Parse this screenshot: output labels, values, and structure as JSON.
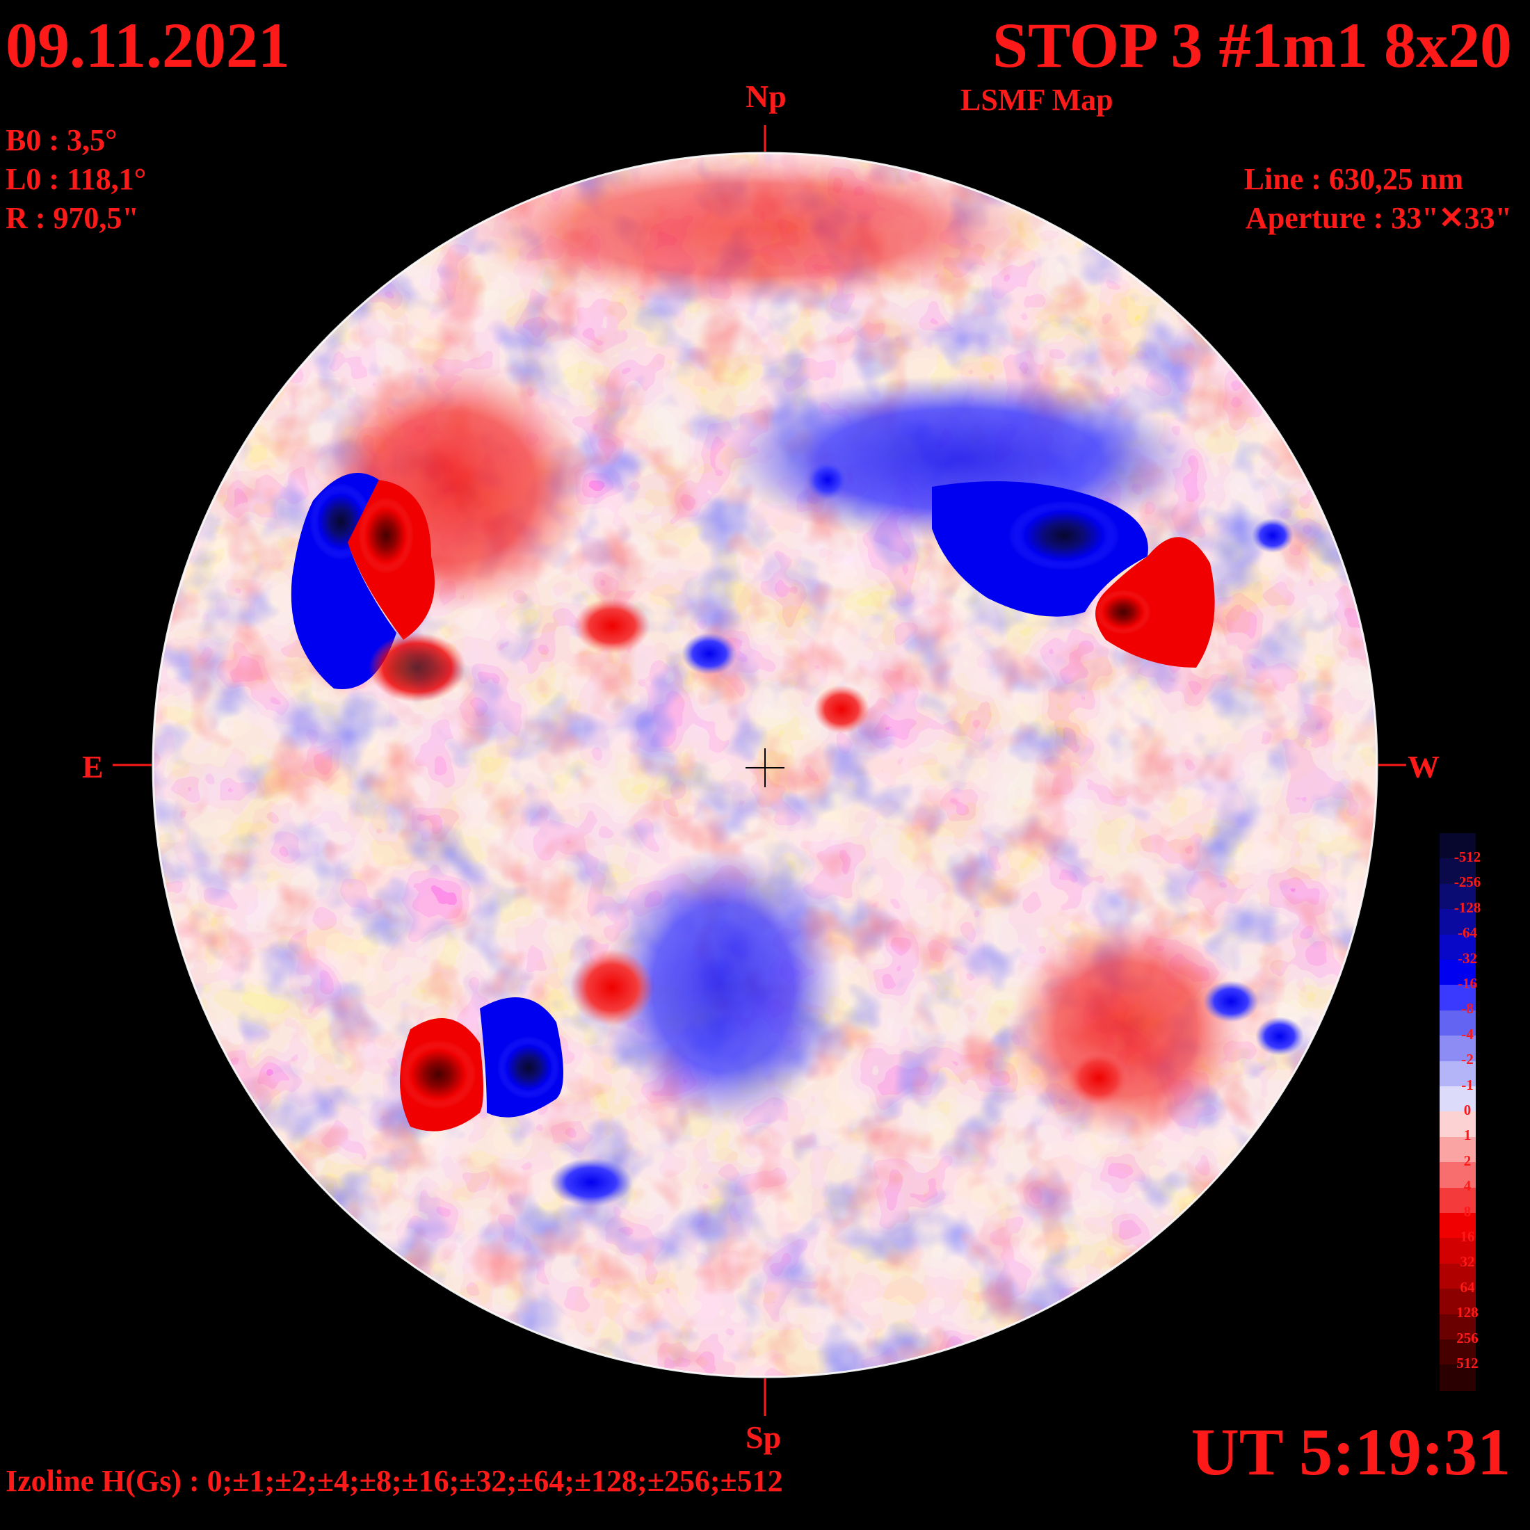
{
  "header": {
    "date": "09.11.2021",
    "title": "STOP 3 #1m1 8x20",
    "subtitle": "LSMF  Map",
    "ut": "UT 5:19:31"
  },
  "params": {
    "b0": "B0 : 3,5°",
    "l0": "L0 : 118,1°",
    "r": "R  : 970,5\"",
    "line": "Line :  630,25 nm",
    "aperture": "Aperture : 33\"✕33\""
  },
  "directions": {
    "north": "Np",
    "south": "Sp",
    "east": "E",
    "west": "W"
  },
  "footer": {
    "izoline": "Izoline H(Gs) : 0;±1;±2;±4;±8;±16;±32;±64;±128;±256;±512"
  },
  "colorbar": {
    "levels": [
      {
        "label": "-512",
        "color": "#07072e"
      },
      {
        "label": "-256",
        "color": "#0a0a4a"
      },
      {
        "label": "-128",
        "color": "#0b0b74"
      },
      {
        "label": "-64",
        "color": "#0a0aa0"
      },
      {
        "label": "-32",
        "color": "#0808c8"
      },
      {
        "label": "-16",
        "color": "#0000f0"
      },
      {
        "label": "-8",
        "color": "#3a3aff"
      },
      {
        "label": "-4",
        "color": "#6464f2"
      },
      {
        "label": "-2",
        "color": "#8c8cf4"
      },
      {
        "label": "-1",
        "color": "#b4b4f8"
      },
      {
        "label": "0",
        "color": "#dcdcfa"
      },
      {
        "label": "1",
        "color": "#fcd2d2"
      },
      {
        "label": "2",
        "color": "#faa4a4"
      },
      {
        "label": "4",
        "color": "#f86e6e"
      },
      {
        "label": "8",
        "color": "#f43a3a"
      },
      {
        "label": "16",
        "color": "#f00000"
      },
      {
        "label": "32",
        "color": "#d20000"
      },
      {
        "label": "64",
        "color": "#b00000"
      },
      {
        "label": "128",
        "color": "#8c0000"
      },
      {
        "label": "256",
        "color": "#6a0000"
      },
      {
        "label": "512",
        "color": "#460000"
      },
      {
        "label": "",
        "color": "#2a0000"
      }
    ]
  },
  "features": [
    {
      "name": "ar-ne-negative",
      "sign": "negative",
      "strength": 6
    },
    {
      "name": "ar-ne-positive",
      "sign": "positive",
      "strength": 5
    },
    {
      "name": "ar-nw-negative",
      "sign": "negative",
      "strength": 5
    },
    {
      "name": "ar-nw-positive",
      "sign": "positive",
      "strength": 5
    },
    {
      "name": "ar-se-positive",
      "sign": "positive",
      "strength": 6
    },
    {
      "name": "ar-se-negative",
      "sign": "negative",
      "strength": 6
    }
  ]
}
